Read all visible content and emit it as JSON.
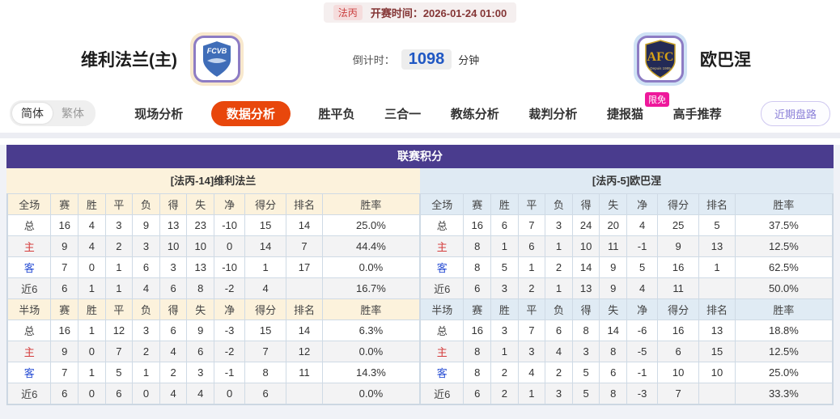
{
  "colors": {
    "accent_purple": "#4a3c8e",
    "active_tab_orange": "#e8470c",
    "badge_pink": "#ee189b",
    "home_theme_cream": "#fcf2dc",
    "away_theme_blue": "#dfeaf3",
    "home_label_red": "#d43c3c",
    "away_label_blue": "#2a4fd4",
    "countdown_blue": "#1f57c3",
    "kickoff_red": "#843535"
  },
  "topbar": {
    "league_badge": "法丙",
    "kickoff_label": "开赛时间：",
    "kickoff_time": "2026-01-24 01:00"
  },
  "teams": {
    "home_name": "维利法兰(主)",
    "home_logo_text": "FCVB",
    "away_name": "欧巴涅",
    "away_logo_monogram": "AFC",
    "away_logo_subtext": "Depuis 1989",
    "countdown_label": "倒计时：",
    "countdown_value": "1098",
    "countdown_unit": "分钟"
  },
  "nav": {
    "lang_simplified": "简体",
    "lang_traditional": "繁体",
    "tabs": [
      {
        "key": "live-analysis",
        "label": "现场分析"
      },
      {
        "key": "data-analysis",
        "label": "数据分析",
        "active": true
      },
      {
        "key": "win-draw-lose",
        "label": "胜平负"
      },
      {
        "key": "three-in-one",
        "label": "三合一"
      },
      {
        "key": "coach-analysis",
        "label": "教练分析"
      },
      {
        "key": "referee-analysis",
        "label": "裁判分析"
      },
      {
        "key": "jiebao-cat",
        "label": "捷报猫",
        "badge": "限免"
      },
      {
        "key": "expert-picks",
        "label": "高手推荐"
      }
    ],
    "recent_odds_button": "近期盘路"
  },
  "league_table": {
    "title": "联赛积分",
    "sides": [
      {
        "id": "home",
        "theme": "cream",
        "team_header": "[法丙-14]维利法兰",
        "sections": [
          {
            "scope": "全场",
            "columns": [
              "赛",
              "胜",
              "平",
              "负",
              "得",
              "失",
              "净",
              "得分",
              "排名",
              "胜率"
            ],
            "rows": [
              {
                "label": "总",
                "style": "total",
                "values": [
                  "16",
                  "4",
                  "3",
                  "9",
                  "13",
                  "23",
                  "-10",
                  "15",
                  "14",
                  "25.0%"
                ]
              },
              {
                "label": "主",
                "style": "home",
                "values": [
                  "9",
                  "4",
                  "2",
                  "3",
                  "10",
                  "10",
                  "0",
                  "14",
                  "7",
                  "44.4%"
                ]
              },
              {
                "label": "客",
                "style": "away",
                "values": [
                  "7",
                  "0",
                  "1",
                  "6",
                  "3",
                  "13",
                  "-10",
                  "1",
                  "17",
                  "0.0%"
                ]
              },
              {
                "label": "近6",
                "style": "recent",
                "values": [
                  "6",
                  "1",
                  "1",
                  "4",
                  "6",
                  "8",
                  "-2",
                  "4",
                  "",
                  "16.7%"
                ]
              }
            ]
          },
          {
            "scope": "半场",
            "columns": [
              "赛",
              "胜",
              "平",
              "负",
              "得",
              "失",
              "净",
              "得分",
              "排名",
              "胜率"
            ],
            "rows": [
              {
                "label": "总",
                "style": "total",
                "values": [
                  "16",
                  "1",
                  "12",
                  "3",
                  "6",
                  "9",
                  "-3",
                  "15",
                  "14",
                  "6.3%"
                ]
              },
              {
                "label": "主",
                "style": "home",
                "values": [
                  "9",
                  "0",
                  "7",
                  "2",
                  "4",
                  "6",
                  "-2",
                  "7",
                  "12",
                  "0.0%"
                ]
              },
              {
                "label": "客",
                "style": "away",
                "values": [
                  "7",
                  "1",
                  "5",
                  "1",
                  "2",
                  "3",
                  "-1",
                  "8",
                  "11",
                  "14.3%"
                ]
              },
              {
                "label": "近6",
                "style": "recent",
                "values": [
                  "6",
                  "0",
                  "6",
                  "0",
                  "4",
                  "4",
                  "0",
                  "6",
                  "",
                  "0.0%"
                ]
              }
            ]
          }
        ]
      },
      {
        "id": "away",
        "theme": "blue",
        "team_header": "[法丙-5]欧巴涅",
        "sections": [
          {
            "scope": "全场",
            "columns": [
              "赛",
              "胜",
              "平",
              "负",
              "得",
              "失",
              "净",
              "得分",
              "排名",
              "胜率"
            ],
            "rows": [
              {
                "label": "总",
                "style": "total",
                "values": [
                  "16",
                  "6",
                  "7",
                  "3",
                  "24",
                  "20",
                  "4",
                  "25",
                  "5",
                  "37.5%"
                ]
              },
              {
                "label": "主",
                "style": "home",
                "values": [
                  "8",
                  "1",
                  "6",
                  "1",
                  "10",
                  "11",
                  "-1",
                  "9",
                  "13",
                  "12.5%"
                ]
              },
              {
                "label": "客",
                "style": "away",
                "values": [
                  "8",
                  "5",
                  "1",
                  "2",
                  "14",
                  "9",
                  "5",
                  "16",
                  "1",
                  "62.5%"
                ]
              },
              {
                "label": "近6",
                "style": "recent",
                "values": [
                  "6",
                  "3",
                  "2",
                  "1",
                  "13",
                  "9",
                  "4",
                  "11",
                  "",
                  "50.0%"
                ]
              }
            ]
          },
          {
            "scope": "半场",
            "columns": [
              "赛",
              "胜",
              "平",
              "负",
              "得",
              "失",
              "净",
              "得分",
              "排名",
              "胜率"
            ],
            "rows": [
              {
                "label": "总",
                "style": "total",
                "values": [
                  "16",
                  "3",
                  "7",
                  "6",
                  "8",
                  "14",
                  "-6",
                  "16",
                  "13",
                  "18.8%"
                ]
              },
              {
                "label": "主",
                "style": "home",
                "values": [
                  "8",
                  "1",
                  "3",
                  "4",
                  "3",
                  "8",
                  "-5",
                  "6",
                  "15",
                  "12.5%"
                ]
              },
              {
                "label": "客",
                "style": "away",
                "values": [
                  "8",
                  "2",
                  "4",
                  "2",
                  "5",
                  "6",
                  "-1",
                  "10",
                  "10",
                  "25.0%"
                ]
              },
              {
                "label": "近6",
                "style": "recent",
                "values": [
                  "6",
                  "2",
                  "1",
                  "3",
                  "5",
                  "8",
                  "-3",
                  "7",
                  "",
                  "33.3%"
                ]
              }
            ]
          }
        ]
      }
    ]
  }
}
